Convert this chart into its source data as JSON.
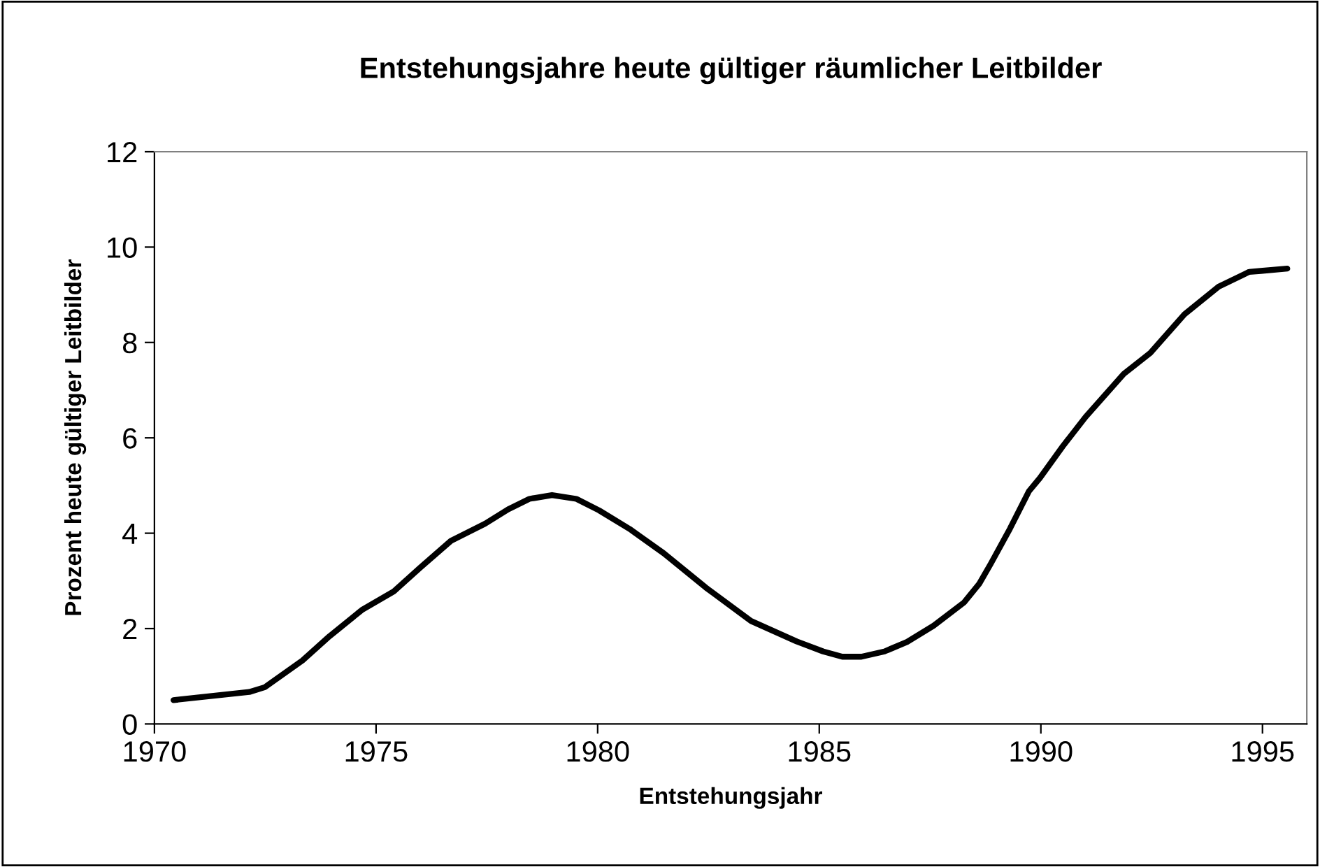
{
  "chart_data": {
    "type": "line",
    "title": "Entstehungsjahre heute gültiger räumlicher Leitbilder",
    "xlabel": "Entstehungsjahr",
    "ylabel": "Prozent heute gültiger Leitbilder",
    "xlim": [
      1970,
      1996
    ],
    "xticks": [
      1970,
      1975,
      1980,
      1985,
      1990,
      1995
    ],
    "ylim": [
      0,
      12
    ],
    "yticks": [
      0,
      2,
      4,
      6,
      8,
      10,
      12
    ],
    "grid": false,
    "marker": "none",
    "line_style": "solid",
    "series": [
      {
        "color": "#000000",
        "x": [
          1970.43,
          1972.14,
          1972.49,
          1973.34,
          1973.95,
          1974.68,
          1975.4,
          1976.0,
          1976.69,
          1977.46,
          1977.98,
          1978.46,
          1978.97,
          1979.52,
          1980.03,
          1980.72,
          1981.49,
          1982.44,
          1983.46,
          1984.49,
          1985.09,
          1985.52,
          1985.95,
          1986.47,
          1986.98,
          1987.58,
          1988.27,
          1988.61,
          1988.87,
          1989.3,
          1989.73,
          1989.98,
          1990.5,
          1991.01,
          1991.87,
          1992.47,
          1993.24,
          1994.01,
          1994.7,
          1994.96,
          1995.56
        ],
        "values": [
          0.5,
          0.67,
          0.77,
          1.33,
          1.84,
          2.39,
          2.78,
          3.28,
          3.84,
          4.2,
          4.5,
          4.72,
          4.8,
          4.72,
          4.48,
          4.09,
          3.58,
          2.86,
          2.16,
          1.73,
          1.52,
          1.41,
          1.41,
          1.52,
          1.72,
          2.06,
          2.55,
          2.94,
          3.36,
          4.09,
          4.88,
          5.16,
          5.83,
          6.44,
          7.34,
          7.78,
          8.59,
          9.17,
          9.48,
          9.5,
          9.55
        ]
      }
    ]
  }
}
